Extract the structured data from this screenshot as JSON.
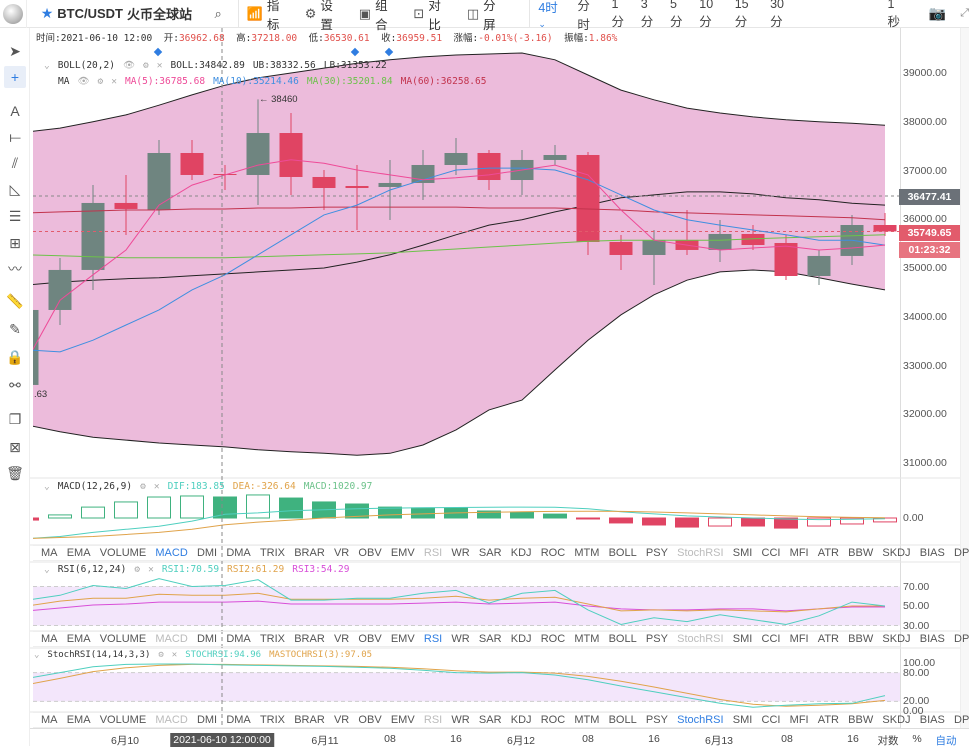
{
  "topbar": {
    "symbol": "BTC/USDT",
    "exchange": "火币全球站",
    "tools": [
      {
        "icon": "indicator-icon",
        "label": "指标"
      },
      {
        "icon": "gear-icon",
        "label": "设置"
      },
      {
        "icon": "layout-icon",
        "label": "组合"
      },
      {
        "icon": "compare-icon",
        "label": "对比"
      },
      {
        "icon": "split-icon",
        "label": "分屏"
      }
    ],
    "periods": [
      "4时",
      "分时",
      "1分",
      "3分",
      "5分",
      "10分",
      "15分",
      "30分"
    ],
    "active_period": "4时",
    "refresh": "1秒"
  },
  "info": {
    "time_label": "时间:",
    "time": "2021-06-10 12:00",
    "open_label": "开:",
    "open": "36962.68",
    "high_label": "高:",
    "high": "37218.00",
    "low_label": "低:",
    "low": "36530.61",
    "close_label": "收:",
    "close": "36959.51",
    "change_label": "涨幅:",
    "change": "-0.01%(-3.16)",
    "amp_label": "振幅:",
    "amp": "1.86%"
  },
  "legend": {
    "boll_name": "BOLL(20,2)",
    "boll": "BOLL:34842.89",
    "ub": "UB:38332.56",
    "lb": "LB:31353.22",
    "ma_name": "MA",
    "ma5": "MA(5):36785.68",
    "ma10": "MA(10):35214.46",
    "ma30": "MA(30):35201.84",
    "ma60": "MA(60):36258.65"
  },
  "colors": {
    "up": "#6f8580",
    "down": "#e04463",
    "boll_fill": "#ecbbdb",
    "ma5": "#ee4b98",
    "ma10": "#3f8fe0",
    "ma30": "#6cc24a",
    "ma60": "#c2334d",
    "accent": "#2f7de1",
    "dif": "#4fcfbf",
    "dea": "#e0a34a",
    "rsi3": "#d84fd8"
  },
  "price_axis": {
    "ticks": [
      "39000.00",
      "38000.00",
      "37000.00",
      "36000.00",
      "35000.00",
      "34000.00",
      "33000.00",
      "32000.00",
      "31000.00"
    ],
    "mark_high": "36477.41",
    "last_price": "35749.65",
    "countdown": "01:23:32",
    "max_label": "← 38460",
    "min_label": ".63"
  },
  "chart_data": {
    "type": "candlestick",
    "ylim": [
      31000,
      39000
    ],
    "ohlc": [
      [
        32601,
        34344,
        32396,
        34139
      ],
      [
        34139,
        35206,
        33831,
        34960
      ],
      [
        34960,
        36703,
        34549,
        36334
      ],
      [
        36334,
        36908,
        35677,
        36211
      ],
      [
        36190,
        37626,
        36088,
        37359
      ],
      [
        37359,
        37626,
        36805,
        36908
      ],
      [
        36928,
        37113,
        36600,
        36908
      ],
      [
        36908,
        38460,
        36293,
        37769
      ],
      [
        37769,
        38180,
        36498,
        36867
      ],
      [
        36867,
        37010,
        36190,
        36641
      ],
      [
        36682,
        37113,
        35780,
        36641
      ],
      [
        36662,
        37216,
        35985,
        36744
      ],
      [
        36744,
        37421,
        36395,
        37113
      ],
      [
        37113,
        37667,
        36908,
        37359
      ],
      [
        37359,
        37421,
        36600,
        36805
      ],
      [
        36805,
        37421,
        36498,
        37216
      ],
      [
        37216,
        37523,
        37113,
        37318
      ],
      [
        37318,
        37380,
        35267,
        35534
      ],
      [
        35534,
        35677,
        34960,
        35267
      ],
      [
        35267,
        35780,
        34652,
        35575
      ],
      [
        35575,
        36190,
        35267,
        35370
      ],
      [
        35370,
        35985,
        35124,
        35698
      ],
      [
        35698,
        35882,
        35370,
        35472
      ],
      [
        35513,
        35677,
        34754,
        34836
      ],
      [
        34836,
        35370,
        34652,
        35247
      ],
      [
        35247,
        36088,
        35062,
        35882
      ],
      [
        35882,
        36129,
        35657,
        35750
      ]
    ],
    "boll_upper": [
      37790,
      37870,
      38000,
      38140,
      38340,
      38550,
      38750,
      38900,
      39000,
      39100,
      39200,
      39270,
      39330,
      39370,
      39390,
      39410,
      39270,
      38960,
      38650,
      38450,
      38280,
      38180,
      38100,
      38040,
      38000,
      37970,
      37930
    ],
    "boll_lower": [
      31780,
      31640,
      31530,
      31470,
      31410,
      31370,
      31330,
      31270,
      31230,
      31200,
      31160,
      31200,
      31370,
      31680,
      32090,
      32290,
      32910,
      33520,
      34040,
      34450,
      34750,
      34920,
      34960,
      34920,
      34800,
      34670,
      34550
    ],
    "boll_mid": [
      34650,
      34710,
      34750,
      34780,
      34800,
      34840,
      34880,
      34920,
      34960,
      35000,
      35120,
      35270,
      35470,
      35680,
      35880,
      35990,
      36150,
      36290,
      36440,
      36500,
      36560,
      36560,
      36520,
      36440,
      36400,
      36330,
      36290
    ],
    "ma5": [
      33110,
      34340,
      34860,
      35370,
      36290,
      36700,
      36910,
      37110,
      37220,
      37150,
      37010,
      36910,
      36810,
      36850,
      36910,
      37010,
      37110,
      36910,
      36190,
      35570,
      35470,
      35370,
      35410,
      35450,
      35370,
      35410,
      35470
    ],
    "ma10": [
      33320,
      33280,
      33520,
      33830,
      34140,
      34550,
      34860,
      35270,
      35680,
      36090,
      36290,
      36600,
      36810,
      37010,
      37050,
      37050,
      37010,
      36810,
      36500,
      36190,
      35990,
      35880,
      35780,
      35680,
      35570,
      35570,
      35470
    ],
    "ma30": [
      35270,
      35250,
      35230,
      35210,
      35210,
      35210,
      35210,
      35230,
      35250,
      35270,
      35290,
      35310,
      35350,
      35390,
      35430,
      35470,
      35510,
      35550,
      35570,
      35570,
      35570,
      35570,
      35600,
      35620,
      35640,
      35660,
      35680
    ],
    "ma60": [
      36130,
      36150,
      36170,
      36190,
      36190,
      36210,
      36210,
      36230,
      36230,
      36250,
      36250,
      36250,
      36250,
      36250,
      36230,
      36230,
      36230,
      36210,
      36190,
      36150,
      36130,
      36110,
      36090,
      36070,
      36050,
      36030,
      35990
    ],
    "macd": {
      "hist": [
        -100,
        150,
        530,
        780,
        1020,
        1070,
        1021,
        1120,
        970,
        780,
        680,
        530,
        490,
        490,
        340,
        290,
        190,
        -30,
        -240,
        -340,
        -440,
        -390,
        -390,
        -490,
        -390,
        -290,
        -190
      ],
      "dif": [
        -1000,
        -900,
        -700,
        -550,
        -400,
        -150,
        184,
        250,
        350,
        400,
        450,
        480,
        500,
        510,
        520,
        530,
        520,
        450,
        300,
        200,
        100,
        50,
        0,
        -50,
        -80,
        -60,
        -40
      ],
      "dea": [
        -1000,
        -950,
        -900,
        -800,
        -700,
        -550,
        -327,
        -200,
        -100,
        0,
        80,
        150,
        200,
        250,
        280,
        300,
        320,
        330,
        320,
        290,
        250,
        200,
        150,
        100,
        60,
        30,
        10
      ]
    },
    "rsi": {
      "rsi1": [
        56,
        61,
        71,
        68,
        78,
        70,
        71,
        77,
        56,
        56,
        58,
        58,
        63,
        66,
        53,
        63,
        66,
        46,
        31,
        38,
        34,
        41,
        36,
        31,
        40,
        54,
        50
      ],
      "rsi2": [
        50,
        55,
        58,
        58,
        62,
        61,
        61,
        63,
        57,
        57,
        57,
        57,
        58,
        60,
        56,
        58,
        59,
        52,
        45,
        46,
        45,
        46,
        45,
        44,
        47,
        50,
        50
      ],
      "rsi3": [
        45,
        48,
        51,
        52,
        54,
        54,
        54,
        55,
        52,
        52,
        52,
        52,
        53,
        54,
        52,
        53,
        54,
        50,
        47,
        46,
        46,
        47,
        47,
        45,
        47,
        49,
        49
      ]
    },
    "stochrsi": {
      "k": [
        68,
        80,
        92,
        97,
        98,
        98,
        96,
        95,
        94,
        93,
        91,
        89,
        85,
        80,
        79,
        80,
        75,
        65,
        52,
        40,
        28,
        16,
        8,
        12,
        15,
        16,
        32
      ],
      "d": [
        55,
        68,
        82,
        90,
        95,
        97,
        97,
        96,
        95,
        94,
        93,
        91,
        88,
        84,
        81,
        81,
        79,
        72,
        62,
        50,
        37,
        24,
        14,
        10,
        12,
        15,
        22
      ]
    }
  },
  "macd_panel": {
    "name": "MACD(12,26,9)",
    "dif": "DIF:183.85",
    "dea": "DEA:-326.64",
    "macd": "MACD:1020.97",
    "zero": "0.00"
  },
  "rsi_panel": {
    "name": "RSI(6,12,24)",
    "rsi1": "RSI1:70.59",
    "rsi2": "RSI2:61.29",
    "rsi3": "RSI3:54.29",
    "ticks": [
      "70.00",
      "50.00",
      "30.00"
    ]
  },
  "stoch_panel": {
    "name": "StochRSI(14,14,3,3)",
    "k": "STOCHRSI:94.96",
    "d": "MASTOCHRSI(3):97.05",
    "ticks": [
      "100.00",
      "80.00",
      "20.00",
      "0.00"
    ]
  },
  "indicator_tabs": [
    "MA",
    "EMA",
    "VOLUME",
    "MACD",
    "DMI",
    "DMA",
    "TRIX",
    "BRAR",
    "VR",
    "OBV",
    "EMV",
    "RSI",
    "WR",
    "SAR",
    "KDJ",
    "ROC",
    "MTM",
    "BOLL",
    "PSY",
    "StochRSI",
    "SMI",
    "CCI",
    "MFI",
    "ATR",
    "BBW",
    "SKDJ",
    "BIAS",
    "DPO",
    "AO"
  ],
  "tab_rows": [
    {
      "active": "MACD",
      "used": [
        "RSI",
        "StochRSI"
      ]
    },
    {
      "active": "RSI",
      "used": [
        "MACD",
        "StochRSI"
      ]
    },
    {
      "active": "StochRSI",
      "used": [
        "MACD",
        "RSI"
      ]
    }
  ],
  "time_axis": {
    "labels": [
      "6月10",
      "6月11",
      "08",
      "16",
      "6月12",
      "08",
      "16",
      "6月13",
      "08",
      "16"
    ],
    "crosshair": "2021-06-10 12:00:00",
    "log": "对数",
    "percent": "%",
    "auto": "自动"
  }
}
